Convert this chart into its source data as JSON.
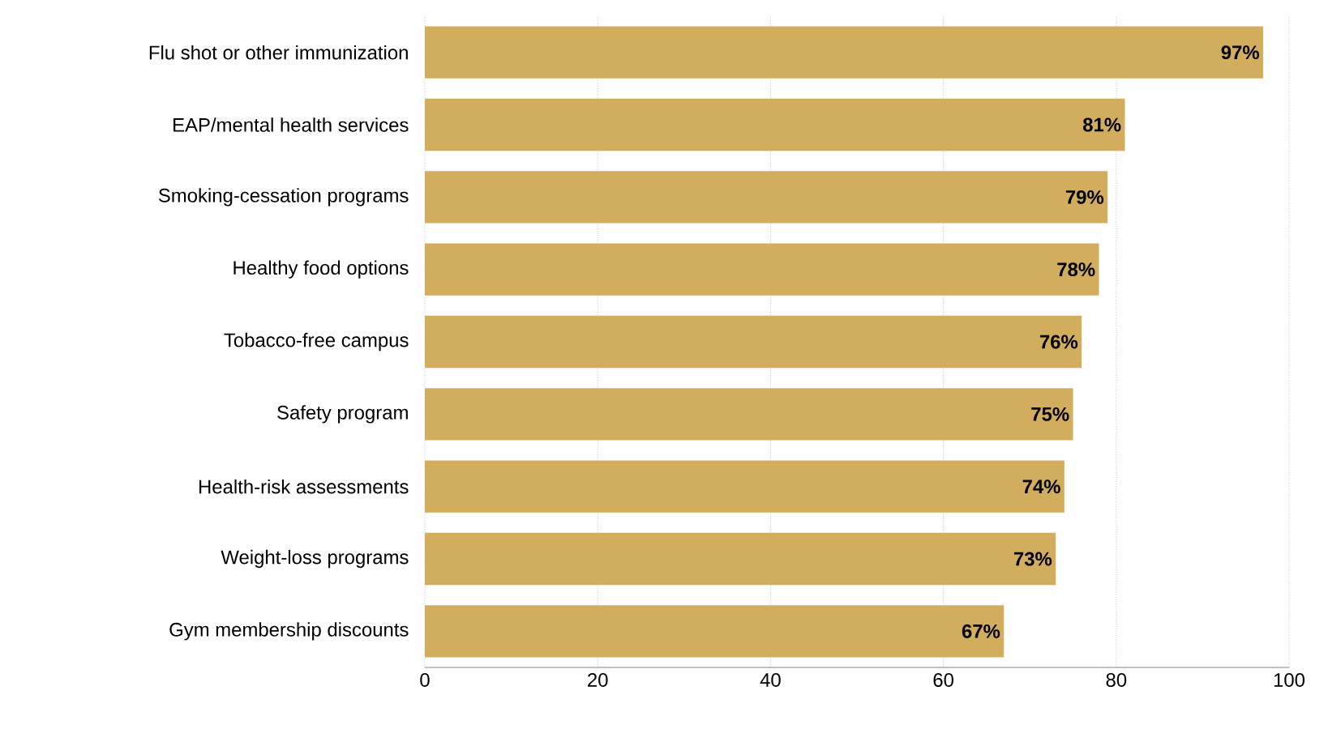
{
  "chart_data": {
    "type": "bar",
    "orientation": "horizontal",
    "categories": [
      "Flu shot or other immunization",
      "EAP/mental health services",
      "Smoking-cessation programs",
      "Healthy food options",
      "Tobacco-free campus",
      "Safety program",
      "Health-risk assessments",
      "Weight-loss programs",
      "Gym membership discounts"
    ],
    "values": [
      97,
      81,
      79,
      78,
      76,
      75,
      74,
      73,
      67
    ],
    "value_labels": [
      "97%",
      "81%",
      "79%",
      "78%",
      "76%",
      "75%",
      "74%",
      "73%",
      "67%"
    ],
    "color": "#d2ad5e",
    "xlim": [
      0,
      100
    ],
    "xticks": [
      0,
      20,
      40,
      60,
      80,
      100
    ],
    "grid": "x"
  }
}
